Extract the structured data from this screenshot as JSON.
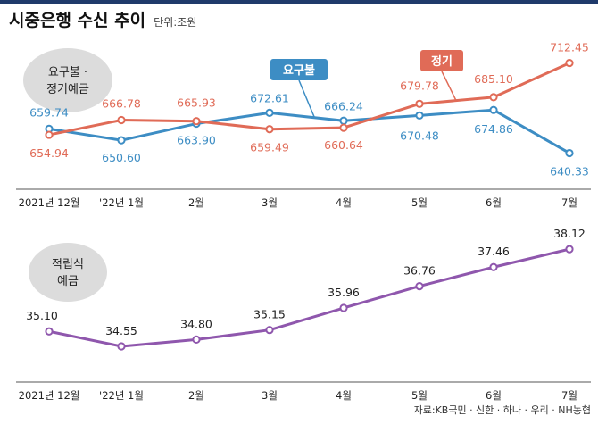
{
  "header": {
    "title": "시중은행 수신 추이",
    "unit": "단위:조원"
  },
  "source": "자료:KB국민 · 신한 · 하나 · 우리 · NH농협",
  "colors": {
    "demand": "#3d8dc4",
    "time": "#e06b57",
    "installment": "#8f57ad",
    "header_bar": "#1f3a6b"
  },
  "chart_data": [
    {
      "type": "line",
      "badge": [
        "요구불 ·",
        "정기예금"
      ],
      "categories": [
        "2021년 12월",
        "'22년 1월",
        "2월",
        "3월",
        "4월",
        "5월",
        "6월",
        "7월"
      ],
      "series": [
        {
          "name": "요구불",
          "values": [
            659.74,
            650.6,
            663.9,
            672.61,
            666.24,
            670.48,
            674.86,
            640.33
          ]
        },
        {
          "name": "정기",
          "values": [
            654.94,
            666.78,
            665.93,
            659.49,
            660.64,
            679.78,
            685.1,
            712.45
          ]
        }
      ],
      "value_labels": {
        "요구불": [
          "659.74",
          "650.60",
          "663.90",
          "672.61",
          "666.24",
          "670.48",
          "674.86",
          "640.33"
        ],
        "정기": [
          "654.94",
          "666.78",
          "665.93",
          "659.49",
          "660.64",
          "679.78",
          "685.10",
          "712.45"
        ]
      }
    },
    {
      "type": "line",
      "badge": [
        "적립식",
        "예금"
      ],
      "categories": [
        "2021년 12월",
        "'22년 1월",
        "2월",
        "3월",
        "4월",
        "5월",
        "6월",
        "7월"
      ],
      "series": [
        {
          "name": "적립식 예금",
          "values": [
            35.1,
            34.55,
            34.8,
            35.15,
            35.96,
            36.76,
            37.46,
            38.12
          ]
        }
      ],
      "value_labels": {
        "적립식 예금": [
          "35.10",
          "34.55",
          "34.80",
          "35.15",
          "35.96",
          "36.76",
          "37.46",
          "38.12"
        ]
      }
    }
  ]
}
